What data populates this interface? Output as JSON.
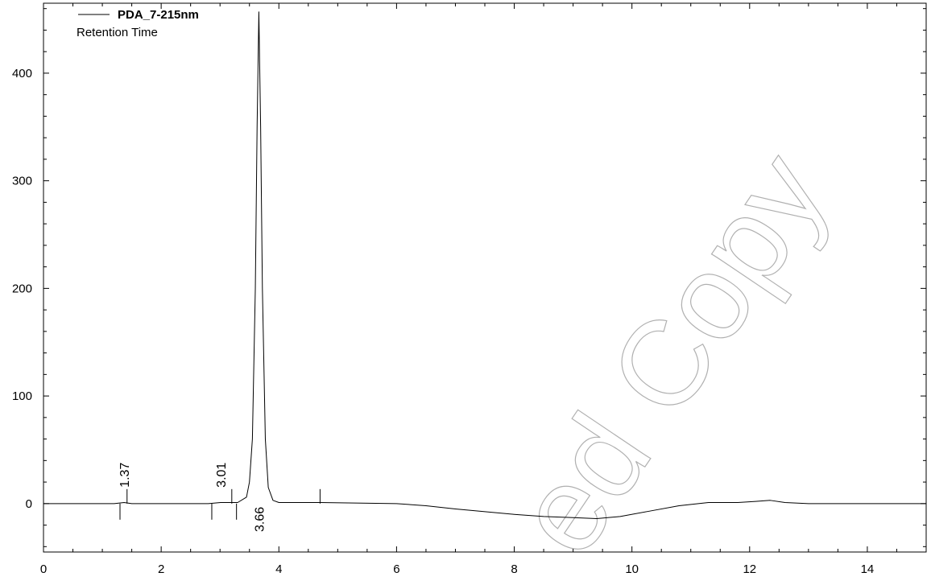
{
  "chart_data": {
    "type": "line",
    "title": "",
    "xlabel": "",
    "ylabel": "",
    "legend": {
      "series_name": "PDA_7-215nm",
      "subtitle": "Retention Time",
      "position": "top-left"
    },
    "xlim": [
      0,
      15
    ],
    "ylim": [
      -45,
      465
    ],
    "x_ticks": [
      0,
      2,
      4,
      6,
      8,
      10,
      12,
      14
    ],
    "y_ticks": [
      0,
      100,
      200,
      300,
      400
    ],
    "x_tick_labels": [
      "0",
      "2",
      "4",
      "6",
      "8",
      "10",
      "12",
      "14"
    ],
    "y_tick_labels": [
      "0",
      "100",
      "200",
      "300",
      "400"
    ],
    "grid": false,
    "series": [
      {
        "name": "PDA_7-215nm",
        "color": "#000000",
        "x": [
          0,
          1.2,
          1.37,
          1.5,
          2.8,
          3.01,
          3.3,
          3.45,
          3.5,
          3.55,
          3.6,
          3.63,
          3.66,
          3.69,
          3.72,
          3.77,
          3.82,
          3.9,
          4.0,
          4.7,
          6.0,
          6.5,
          7.0,
          8.0,
          8.5,
          9.0,
          9.4,
          9.8,
          10.3,
          10.8,
          11.3,
          11.8,
          12.1,
          12.35,
          12.6,
          13.0,
          14.0,
          15.0
        ],
        "y": [
          0,
          0,
          1,
          0,
          0,
          1,
          1,
          6,
          20,
          60,
          200,
          350,
          457,
          350,
          200,
          60,
          15,
          3,
          1,
          1,
          0,
          -2,
          -5,
          -10,
          -12,
          -13,
          -14,
          -12,
          -7,
          -2,
          1,
          1,
          2,
          3,
          1,
          0,
          0,
          0
        ]
      }
    ],
    "peaks": [
      {
        "time": "1.37",
        "label_position": "above"
      },
      {
        "time": "3.01",
        "label_position": "above"
      },
      {
        "time": "3.66",
        "label_position": "below"
      }
    ],
    "integration_marks": {
      "upper": [
        1.42,
        3.2,
        4.7
      ],
      "lower": [
        1.3,
        2.86,
        3.28
      ]
    }
  },
  "watermark": {
    "text": "Controlled Copy",
    "visible_text": "ed Copy",
    "color": "#b0b0b0"
  }
}
